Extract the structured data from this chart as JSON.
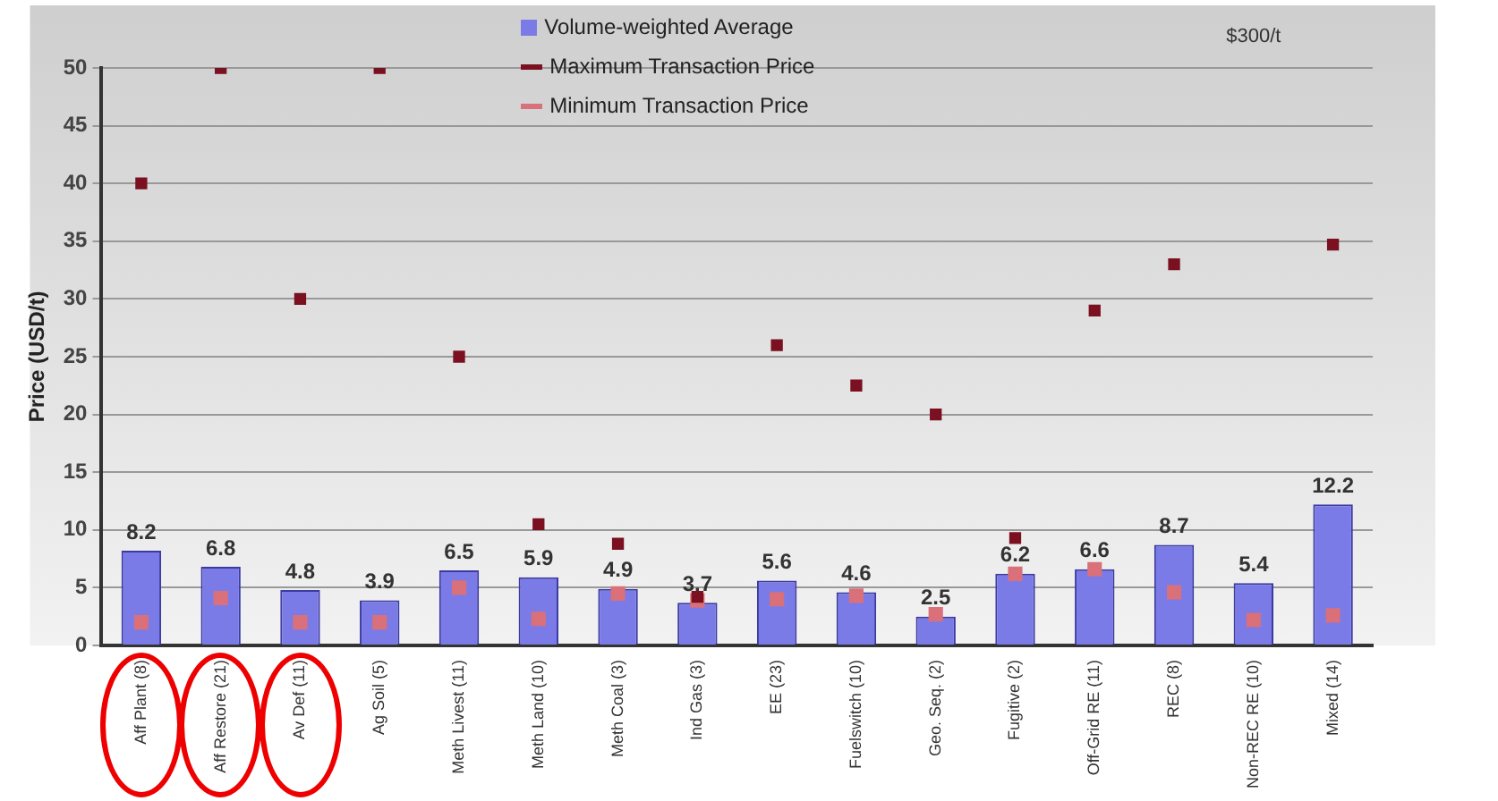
{
  "chart_data": {
    "type": "bar",
    "ylabel": "Price (USD/t)",
    "categories": [
      "Aff Plant (8)",
      "Aff Restore (21)",
      "Av Def (11)",
      "Ag Soil (5)",
      "Meth Livest (11)",
      "Meth Land (10)",
      "Meth Coal (3)",
      "Ind Gas (3)",
      "EE (23)",
      "Fuelswitch (10)",
      "Geo. Seq. (2)",
      "Fugitive (2)",
      "Off-Grid RE (11)",
      "REC (8)",
      "Non-REC RE (10)",
      "Mixed (14)"
    ],
    "series": [
      {
        "name": "Volume-weighted Average",
        "color": "#7b7be8",
        "values": [
          8.2,
          6.8,
          4.8,
          3.9,
          6.5,
          5.9,
          4.9,
          3.7,
          5.6,
          4.6,
          2.5,
          6.2,
          6.6,
          8.7,
          5.4,
          12.2
        ],
        "value_labels": [
          "8.2",
          "6.8",
          "4.8",
          "3.9",
          "6.5",
          "5.9",
          "4.9",
          "3.7",
          "5.6",
          "4.6",
          "2.5",
          "6.2",
          "6.6",
          "8.7",
          "5.4",
          "12.2"
        ]
      },
      {
        "name": "Maximum Transaction Price",
        "type": "scatter",
        "marker": "square",
        "color": "#7a1020",
        "values": [
          40,
          50,
          30,
          50,
          25,
          10.5,
          8.8,
          4.2,
          26,
          22.5,
          20,
          9.3,
          29,
          33,
          null,
          34.7
        ]
      },
      {
        "name": "Minimum Transaction Price",
        "type": "scatter",
        "marker": "square",
        "color": "#d9707a",
        "values": [
          2,
          4.1,
          2,
          2,
          5,
          2.3,
          4.5,
          3.9,
          4,
          4.3,
          2.7,
          6.2,
          6.6,
          4.6,
          2.2,
          2.6
        ]
      }
    ],
    "ylim": [
      0,
      50
    ],
    "yticks": [
      0,
      5,
      10,
      15,
      20,
      25,
      30,
      35,
      40,
      45,
      50
    ],
    "grid": "y",
    "legend": "top",
    "annotations": [
      "$300/t"
    ]
  }
}
